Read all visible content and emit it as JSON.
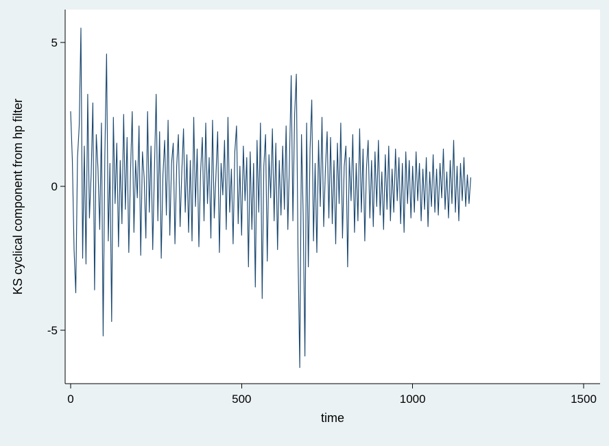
{
  "chart_data": {
    "type": "line",
    "title": "",
    "xlabel": "time",
    "ylabel": "KS cyclical component from hp filter",
    "x_ticks": [
      0,
      500,
      1000,
      1500
    ],
    "y_ticks": [
      -5,
      0,
      5
    ],
    "xlim": [
      0,
      1500
    ],
    "ylim": [
      -6.9,
      6.1
    ],
    "grid": false,
    "legend_position": "none",
    "line_color": "#1a476f",
    "axis_color": "#000000",
    "background_color": "#eaf2f3",
    "plot_background_color": "#ffffff",
    "series": {
      "name": "KS cyclical component from hp filter",
      "x_start": 0,
      "x_step": 5,
      "values": [
        2.6,
        0.9,
        -2.2,
        -3.7,
        1.0,
        2.1,
        5.5,
        -2.5,
        1.4,
        -2.7,
        3.2,
        -1.1,
        0.4,
        2.9,
        -3.6,
        1.8,
        0.6,
        -1.5,
        2.2,
        -5.2,
        1.1,
        4.6,
        -1.9,
        0.8,
        -4.7,
        2.4,
        -0.6,
        1.5,
        -2.1,
        0.9,
        -1.3,
        2.5,
        -0.8,
        1.7,
        -2.3,
        0.5,
        2.6,
        -1.6,
        0.9,
        -0.4,
        2.1,
        -2.4,
        1.2,
        0.3,
        -1.8,
        2.6,
        -0.9,
        1.4,
        -2.2,
        0.6,
        3.2,
        -1.2,
        1.9,
        -2.5,
        0.4,
        1.6,
        -1.0,
        2.3,
        -1.7,
        0.8,
        1.5,
        -2.0,
        0.7,
        1.8,
        -1.4,
        0.5,
        2.0,
        -0.9,
        1.1,
        -1.6,
        0.9,
        -1.9,
        2.4,
        -0.7,
        1.3,
        -2.1,
        0.5,
        1.7,
        -1.2,
        2.2,
        -0.6,
        1.0,
        -1.8,
        2.3,
        -1.1,
        0.4,
        1.9,
        -2.3,
        0.8,
        -0.3,
        1.6,
        -1.5,
        2.4,
        -0.9,
        0.6,
        -2.0,
        1.2,
        2.1,
        -1.3,
        0.7,
        -1.7,
        1.4,
        -0.5,
        1.0,
        -2.8,
        1.2,
        -1.5,
        0.8,
        -3.5,
        1.6,
        -0.9,
        2.2,
        -3.9,
        0.7,
        1.8,
        -2.6,
        1.1,
        -0.4,
        2.0,
        -1.2,
        1.5,
        -2.2,
        0.9,
        -1.0,
        1.4,
        -0.8,
        2.1,
        -1.5,
        0.9,
        3.85,
        -1.2,
        2.5,
        3.9,
        -2.4,
        -6.3,
        1.8,
        -1.0,
        -5.9,
        2.2,
        -2.8,
        1.3,
        3.0,
        -1.9,
        0.8,
        -2.3,
        1.6,
        -0.7,
        2.4,
        -1.4,
        0.6,
        1.9,
        -1.1,
        1.7,
        -1.3,
        0.9,
        -2.0,
        1.5,
        -0.6,
        2.2,
        -1.8,
        0.7,
        1.4,
        -2.8,
        1.0,
        -0.5,
        1.8,
        -1.6,
        0.8,
        -1.2,
        2.0,
        -0.9,
        1.3,
        -1.9,
        0.6,
        1.6,
        -1.1,
        0.9,
        -1.4,
        1.2,
        -0.7,
        1.6,
        -1.0,
        0.5,
        -1.5,
        1.1,
        -0.8,
        1.4,
        -1.2,
        0.6,
        -0.9,
        1.3,
        -0.5,
        1.0,
        -1.3,
        0.8,
        -1.6,
        1.2,
        -0.6,
        0.9,
        -1.1,
        0.7,
        -0.9,
        1.2,
        -0.5,
        0.8,
        -1.2,
        0.6,
        -0.8,
        1.0,
        -1.4,
        0.5,
        -0.7,
        1.1,
        -0.9,
        0.6,
        -1.0,
        0.8,
        -0.4,
        1.3,
        -0.8,
        0.5,
        -1.1,
        0.9,
        -0.6,
        1.6,
        -0.9,
        0.7,
        -1.2,
        0.8,
        -0.5,
        1.0,
        -0.7,
        0.4,
        -0.6,
        0.3
      ]
    }
  }
}
